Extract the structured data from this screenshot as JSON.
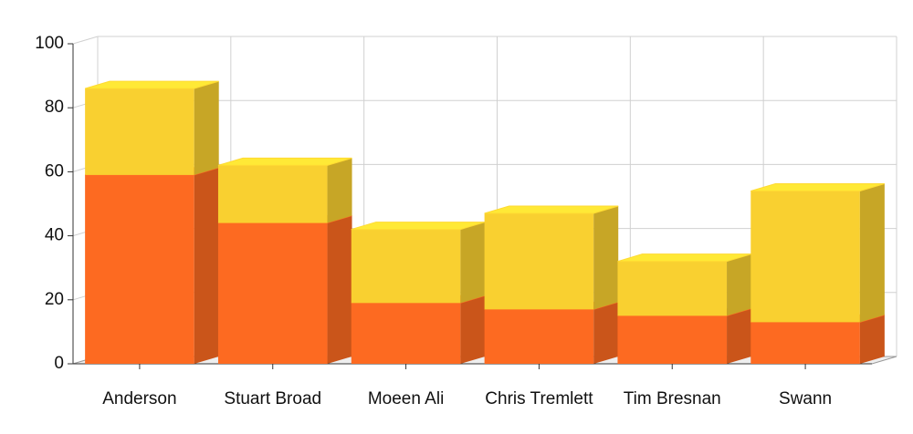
{
  "chart_data": {
    "type": "bar",
    "stacked": true,
    "categories": [
      "Anderson",
      "Stuart Broad",
      "Moeen Ali",
      "Chris Tremlett",
      "Tim Bresnan",
      "Swann"
    ],
    "series": [
      {
        "color": "#fd6a21",
        "values": [
          59,
          44,
          19,
          17,
          15,
          13
        ]
      },
      {
        "color": "#f9d030",
        "values": [
          27,
          18,
          23,
          30,
          17,
          41
        ]
      }
    ],
    "ylim": [
      0,
      100
    ],
    "yticks": [
      0,
      20,
      40,
      60,
      80,
      100
    ],
    "grid": true
  }
}
